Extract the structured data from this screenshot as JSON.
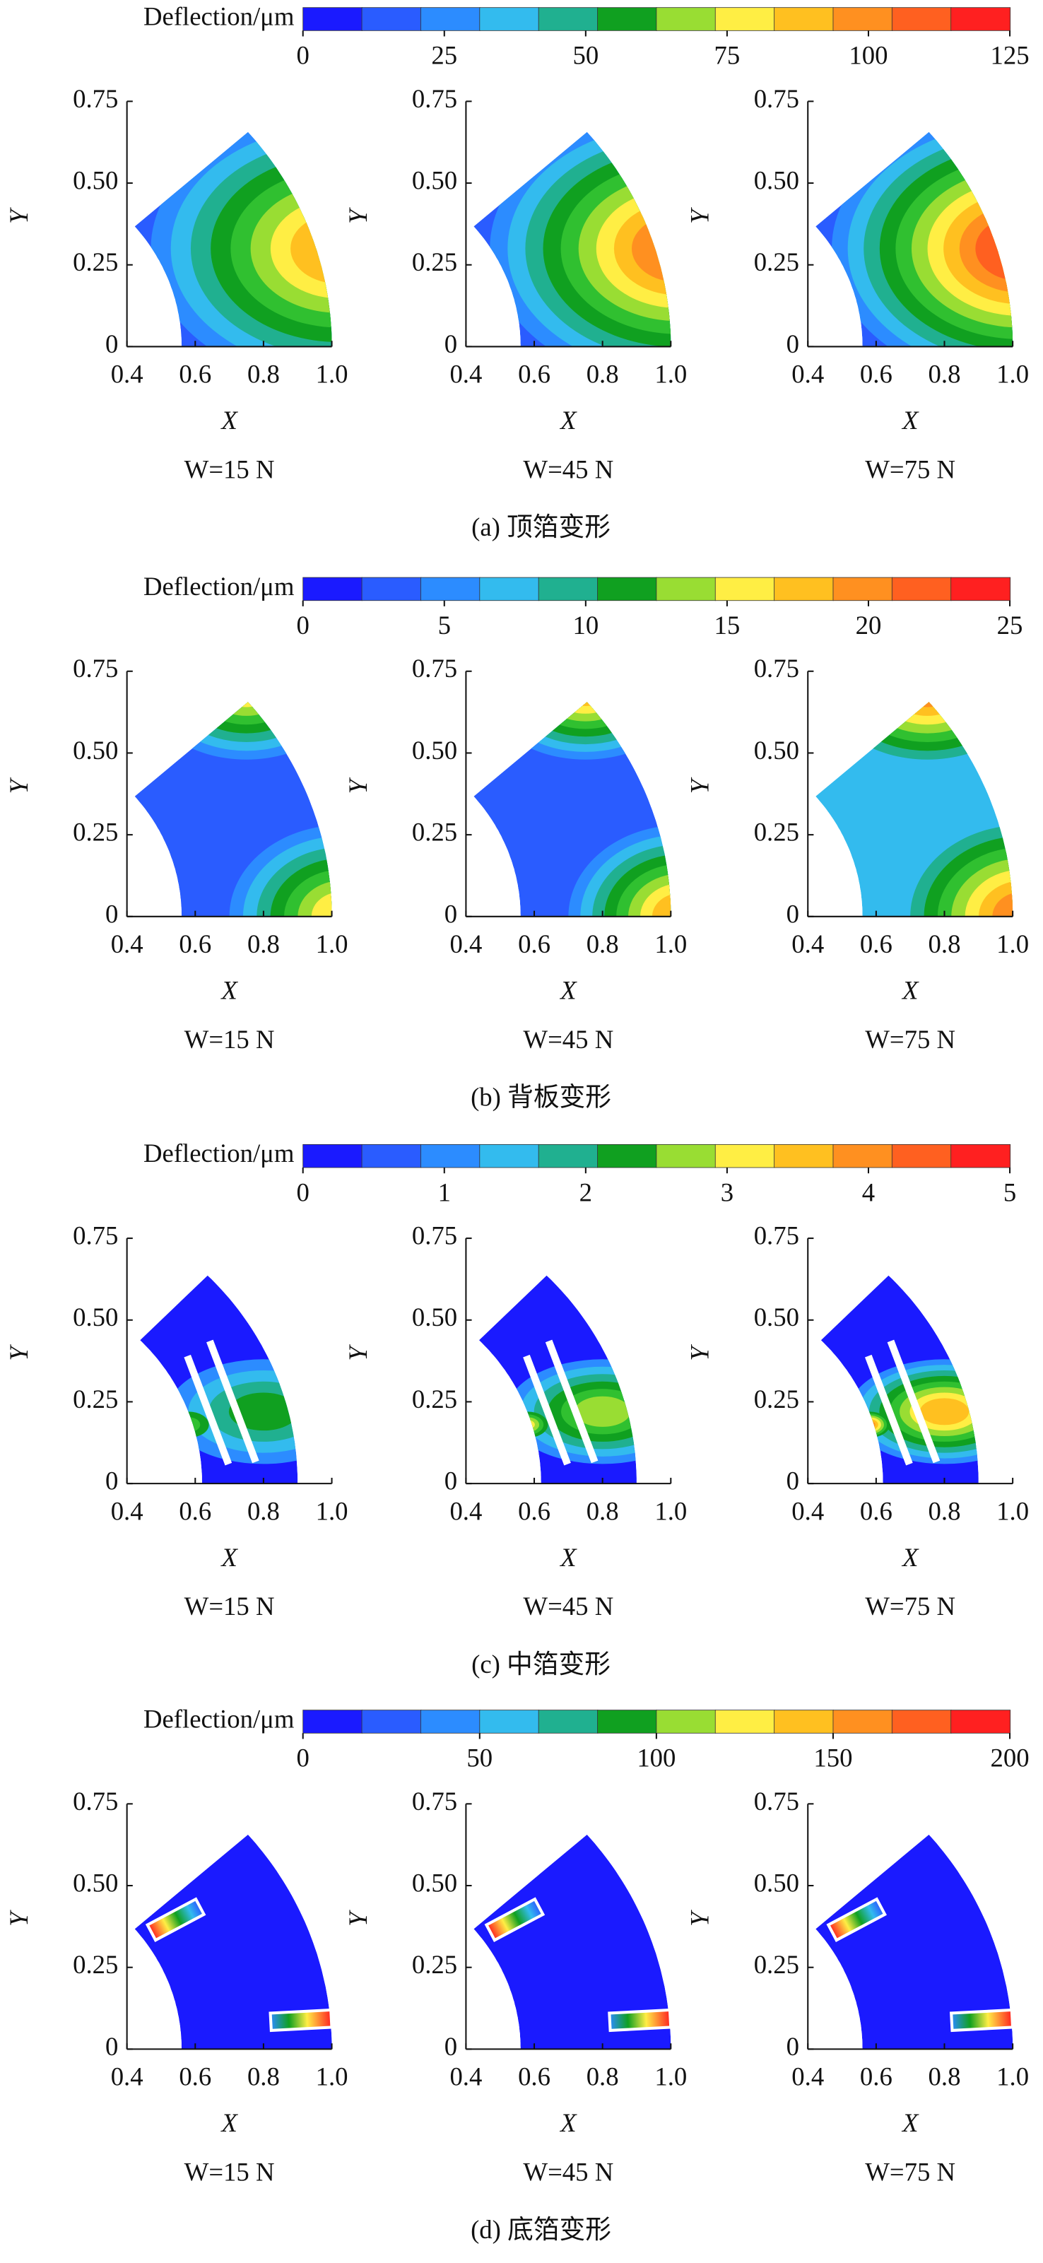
{
  "chart_data": [
    {
      "type": "contour",
      "colorbar_label": "Deflection/μm",
      "colorbar_lim": [
        0,
        125
      ],
      "colorbar_ticks": [
        0,
        25,
        50,
        75,
        100,
        125
      ],
      "colors": [
        "#1a1aff",
        "#2a5cff",
        "#2c8cff",
        "#33bbee",
        "#20b090",
        "#10a020",
        "#30c030",
        "#99dd33",
        "#ffee44",
        "#ffc020",
        "#ff9020",
        "#ff6020",
        "#ff2020"
      ],
      "xlabel": "X",
      "ylabel": "Y",
      "xlim": [
        0.4,
        1
      ],
      "ylim": [
        0,
        0.75
      ],
      "xticks": [
        0.4,
        0.6,
        0.8,
        {
          "value": 1,
          "label": "1.0"
        }
      ],
      "yticks": [
        0,
        0.25,
        {
          "value": 0.5,
          "label": "0.50"
        },
        0.75
      ],
      "subtitles": [
        "W=15 N",
        "W=45 N",
        "W=75 N"
      ],
      "caption": "(a) 顶箔变形"
    },
    {
      "type": "contour",
      "colorbar_label": "Deflection/μm",
      "colorbar_lim": [
        0,
        25
      ],
      "colorbar_ticks": [
        0,
        5,
        10,
        15,
        20,
        25
      ],
      "colors": [
        "#1a1aff",
        "#2a5cff",
        "#2c8cff",
        "#33bbee",
        "#20b090",
        "#10a020",
        "#30c030",
        "#99dd33",
        "#ffee44",
        "#ffc020",
        "#ff9020",
        "#ff6020",
        "#ff2020"
      ],
      "xlabel": "X",
      "ylabel": "Y",
      "xlim": [
        0.4,
        1
      ],
      "ylim": [
        0,
        0.75
      ],
      "xticks": [
        0.4,
        0.6,
        0.8,
        {
          "value": 1,
          "label": "1.0"
        }
      ],
      "yticks": [
        0,
        0.25,
        {
          "value": 0.5,
          "label": "0.50"
        },
        0.75
      ],
      "subtitles": [
        "W=15 N",
        "W=45 N",
        "W=75 N"
      ],
      "caption": "(b) 背板变形"
    },
    {
      "type": "contour",
      "colorbar_label": "Deflection/μm",
      "colorbar_lim": [
        0,
        5
      ],
      "colorbar_ticks": [
        0,
        1,
        2,
        3,
        4,
        5
      ],
      "colors": [
        "#1a1aff",
        "#2a5cff",
        "#2c8cff",
        "#33bbee",
        "#20b090",
        "#10a020",
        "#30c030",
        "#99dd33",
        "#ffee44",
        "#ffc020",
        "#ff9020",
        "#ff6020",
        "#ff2020"
      ],
      "xlabel": "X",
      "ylabel": "Y",
      "xlim": [
        0.4,
        1
      ],
      "ylim": [
        0,
        0.75
      ],
      "xticks": [
        0.4,
        0.6,
        0.8,
        {
          "value": 1,
          "label": "1.0"
        }
      ],
      "yticks": [
        0,
        0.25,
        {
          "value": 0.5,
          "label": "0.50"
        },
        0.75
      ],
      "subtitles": [
        "W=15 N",
        "W=45 N",
        "W=75 N"
      ],
      "caption": "(c) 中箔变形"
    },
    {
      "type": "contour",
      "colorbar_label": "Deflection/μm",
      "colorbar_lim": [
        0,
        200
      ],
      "colorbar_ticks": [
        0,
        50,
        100,
        150,
        200
      ],
      "colors": [
        "#1a1aff",
        "#2a5cff",
        "#2c8cff",
        "#33bbee",
        "#20b090",
        "#10a020",
        "#30c030",
        "#99dd33",
        "#ffee44",
        "#ffc020",
        "#ff9020",
        "#ff6020",
        "#ff2020"
      ],
      "xlabel": "X",
      "ylabel": "Y",
      "xlim": [
        0.4,
        1
      ],
      "ylim": [
        0,
        0.75
      ],
      "xticks": [
        0.4,
        0.6,
        0.8,
        {
          "value": 1,
          "label": "1.0"
        }
      ],
      "yticks": [
        0,
        0.25,
        {
          "value": 0.5,
          "label": "0.50"
        },
        0.75
      ],
      "subtitles": [
        "W=15 N",
        "W=45 N",
        "W=75 N"
      ],
      "caption": "(d) 底箔变形"
    }
  ]
}
